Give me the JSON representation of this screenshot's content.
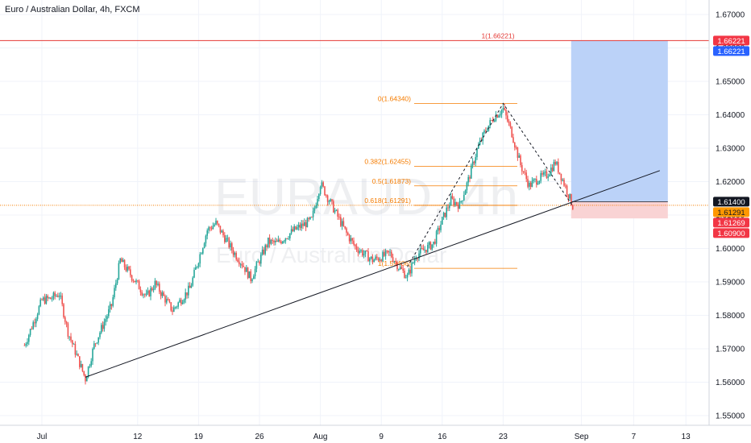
{
  "header": {
    "title": "Euro / Australian Dollar, 4h, FXCM"
  },
  "watermark": {
    "symbol": "EURAUD, 4h",
    "name": "Euro / Australian Dollar"
  },
  "colors": {
    "up": "#26a69a",
    "down": "#ef5350",
    "fib": "#f57c00",
    "red_line": "#e53935",
    "target_zone": "#bbd2f8",
    "stop_zone": "#f9d3d4",
    "trendline": "#131722",
    "tag_blue": "#2962ff",
    "tag_red": "#f23645",
    "tag_black": "#131722",
    "tag_orange": "#ff9800"
  },
  "chart_data": {
    "type": "candlestick",
    "title": "Euro / Australian Dollar, 4h, FXCM",
    "ylim": [
      1.545,
      1.675
    ],
    "y_ticks": [
      "1.55000",
      "1.56000",
      "1.57000",
      "1.58000",
      "1.59000",
      "1.60000",
      "1.61000",
      "1.62000",
      "1.63000",
      "1.64000",
      "1.65000",
      "1.66000",
      "1.67000"
    ],
    "x_ticks": [
      "Jul",
      "12",
      "19",
      "26",
      "Aug",
      "9",
      "16",
      "23",
      "Sep",
      "7",
      "13"
    ],
    "price_path": [
      [
        "Jun 29",
        1.571
      ],
      [
        "Jul 1",
        1.5845
      ],
      [
        "Jul 2",
        1.585
      ],
      [
        "Jul 3",
        1.5865
      ],
      [
        "Jul 4",
        1.575
      ],
      [
        "Jul 6",
        1.561
      ],
      [
        "Jul 7",
        1.571
      ],
      [
        "Jul 9",
        1.583
      ],
      [
        "Jul 10",
        1.5965
      ],
      [
        "Jul 13",
        1.5855
      ],
      [
        "Jul 14",
        1.5895
      ],
      [
        "Jul 16",
        1.5815
      ],
      [
        "Jul 18",
        1.588
      ],
      [
        "Jul 20",
        1.6055
      ],
      [
        "Jul 21",
        1.6075
      ],
      [
        "Jul 23",
        1.599
      ],
      [
        "Jul 24",
        1.5955
      ],
      [
        "Jul 25",
        1.591
      ],
      [
        "Jul 27",
        1.602
      ],
      [
        "Jul 28",
        1.6015
      ],
      [
        "Jul 30",
        1.6055
      ],
      [
        "Aug 1",
        1.6085
      ],
      [
        "Aug 2",
        1.6195
      ],
      [
        "Aug 3",
        1.6145
      ],
      [
        "Aug 5",
        1.6045
      ],
      [
        "Aug 6",
        1.6005
      ],
      [
        "Aug 8",
        1.5965
      ],
      [
        "Aug 10",
        1.5985
      ],
      [
        "Aug 11",
        1.5945
      ],
      [
        "Aug 12",
        1.5915
      ],
      [
        "Aug 13",
        1.598
      ],
      [
        "Aug 15",
        1.6015
      ],
      [
        "Aug 16",
        1.6085
      ],
      [
        "Aug 17",
        1.6145
      ],
      [
        "Aug 18",
        1.613
      ],
      [
        "Aug 19",
        1.6205
      ],
      [
        "Aug 20",
        1.6295
      ],
      [
        "Aug 21",
        1.6355
      ],
      [
        "Aug 22",
        1.6395
      ],
      [
        "Aug 23",
        1.6418
      ],
      [
        "Aug 24",
        1.6345
      ],
      [
        "Aug 25",
        1.625
      ],
      [
        "Aug 26",
        1.6188
      ],
      [
        "Aug 27",
        1.6208
      ],
      [
        "Aug 28",
        1.622
      ],
      [
        "Aug 29",
        1.6258
      ],
      [
        "Aug 30",
        1.6195
      ],
      [
        "Aug 31",
        1.6127
      ]
    ],
    "fibonacci": [
      {
        "label": "0(1.64340)",
        "value": 1.6434
      },
      {
        "label": "0.382(1.62455)",
        "value": 1.62455
      },
      {
        "label": "0.5(1.61873)",
        "value": 1.61873
      },
      {
        "label": "0.618(1.61291)",
        "value": 1.61291
      },
      {
        "label": "1(1.59406)",
        "value": 1.59406
      }
    ],
    "target_label": "1(1.66221)",
    "levels": {
      "target": 1.66221,
      "entry": 1.614,
      "stop": 1.609,
      "current": 1.61269
    },
    "trendline": {
      "from": [
        "Jul 6",
        1.5615
      ],
      "to": [
        "Sep 10",
        1.6233
      ]
    },
    "zigzag": [
      [
        "Aug 12",
        1.5945
      ],
      [
        "Aug 23",
        1.6434
      ],
      [
        "Aug 31",
        1.6127
      ]
    ],
    "price_tags": [
      {
        "text": "1.66221",
        "value": 1.66221,
        "style": "red"
      },
      {
        "text": "1.66221",
        "value": 1.66221,
        "style": "blue"
      },
      {
        "text": "1.61400",
        "value": 1.614,
        "style": "black"
      },
      {
        "text": "1.61291",
        "value": 1.61291,
        "style": "orange"
      },
      {
        "text": "1.61269",
        "value": 1.61269,
        "style": "red"
      },
      {
        "text": "1.60900",
        "value": 1.609,
        "style": "red"
      }
    ]
  }
}
